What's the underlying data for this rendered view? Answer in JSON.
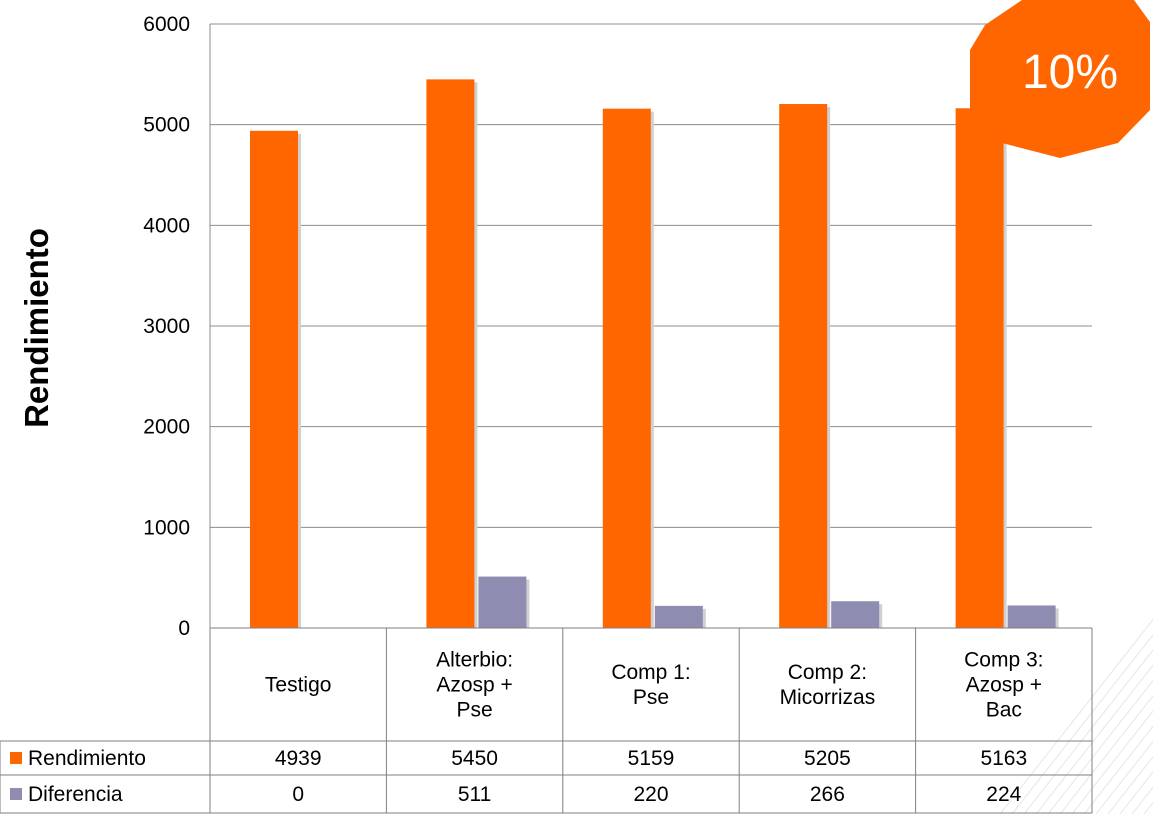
{
  "chart_data": {
    "type": "bar",
    "ylabel": "Rendimiento",
    "ylim": [
      0,
      6000
    ],
    "yticks": [
      0,
      1000,
      2000,
      3000,
      4000,
      5000,
      6000
    ],
    "grid": true,
    "legend": "data-table",
    "categories": [
      [
        "Testigo"
      ],
      [
        "Alterbio:",
        "Azosp +",
        "Pse"
      ],
      [
        "Comp 1:",
        "Pse"
      ],
      [
        "Comp 2:",
        "Micorrizas"
      ],
      [
        "Comp 3:",
        "Azosp +",
        "Bac"
      ]
    ],
    "series": [
      {
        "name": "Rendimiento",
        "color": "#FF6600",
        "values": [
          4939,
          5450,
          5159,
          5205,
          5163
        ]
      },
      {
        "name": "Diferencia",
        "color": "#8E8CB0",
        "values": [
          0,
          511,
          220,
          266,
          224
        ]
      }
    ]
  },
  "badge": {
    "text": "10%",
    "color": "#FF6600"
  }
}
